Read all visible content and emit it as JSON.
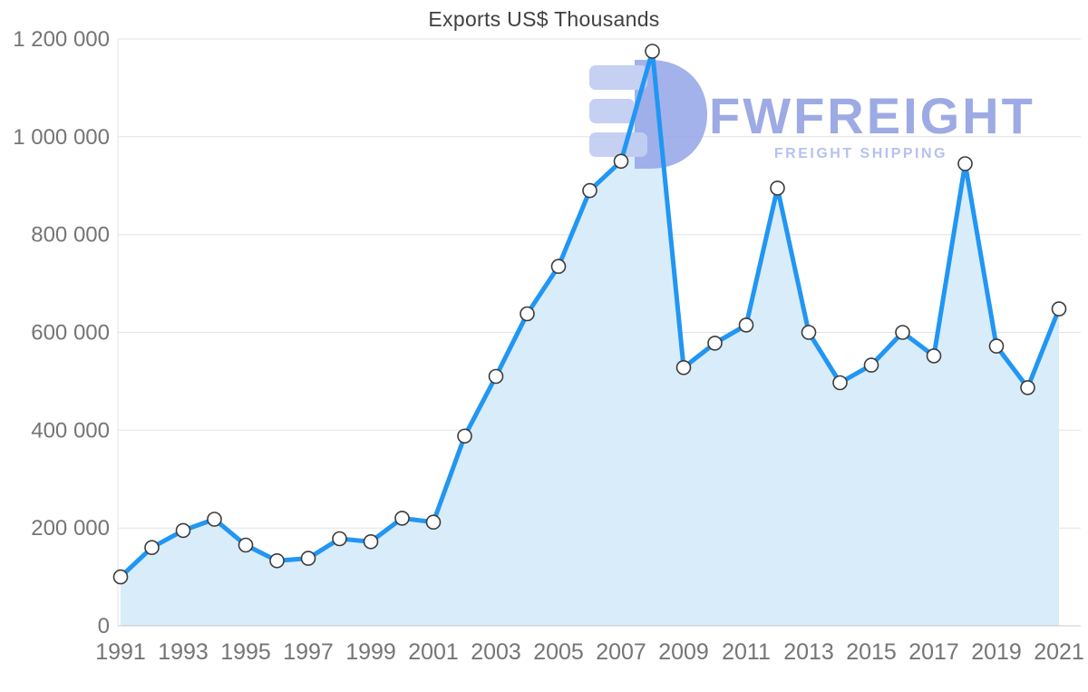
{
  "title": "Exports US$ Thousands",
  "watermark": {
    "brand": "FWFREIGHT",
    "tagline": "FREIGHT SHIPPING"
  },
  "colors": {
    "line": "#2196f3",
    "area": "#d9ecfa",
    "marker_fill": "#ffffff",
    "marker_stroke": "#3b3b3b",
    "grid": "#e3e3e3",
    "axis_line": "#c8c8c8",
    "tick_text": "#757575",
    "title_text": "#404040",
    "watermark_text": "#8c9ce0",
    "watermark_tagline": "#aab8ec",
    "watermark_logo_light": "#bcc8f2",
    "watermark_logo_dark": "#95a5e8"
  },
  "chart_data": {
    "type": "area",
    "title": "Exports US$ Thousands",
    "x": [
      1991,
      1992,
      1993,
      1994,
      1995,
      1996,
      1997,
      1998,
      1999,
      2000,
      2001,
      2002,
      2003,
      2004,
      2005,
      2006,
      2007,
      2008,
      2009,
      2010,
      2011,
      2012,
      2013,
      2014,
      2015,
      2016,
      2017,
      2018,
      2019,
      2020,
      2021
    ],
    "values": [
      100000,
      160000,
      195000,
      218000,
      165000,
      133000,
      138000,
      178000,
      172000,
      220000,
      212000,
      388000,
      510000,
      638000,
      735000,
      890000,
      950000,
      1175000,
      528000,
      578000,
      615000,
      895000,
      600000,
      497000,
      533000,
      600000,
      552000,
      945000,
      572000,
      487000,
      648000
    ],
    "xlabel": "",
    "ylabel": "",
    "ylim": [
      0,
      1200000
    ],
    "y_ticks": [
      0,
      200000,
      400000,
      600000,
      800000,
      1000000,
      1200000
    ],
    "y_tick_labels": [
      "0",
      "200 000",
      "400 000",
      "600 000",
      "800 000",
      "1 000 000",
      "1 200 000"
    ],
    "x_tick_years": [
      1991,
      1993,
      1995,
      1997,
      1999,
      2001,
      2003,
      2005,
      2007,
      2009,
      2011,
      2013,
      2015,
      2017,
      2019,
      2021
    ],
    "grid": "horizontal",
    "legend": "none",
    "marker": "circle-white",
    "line_width": 5
  }
}
